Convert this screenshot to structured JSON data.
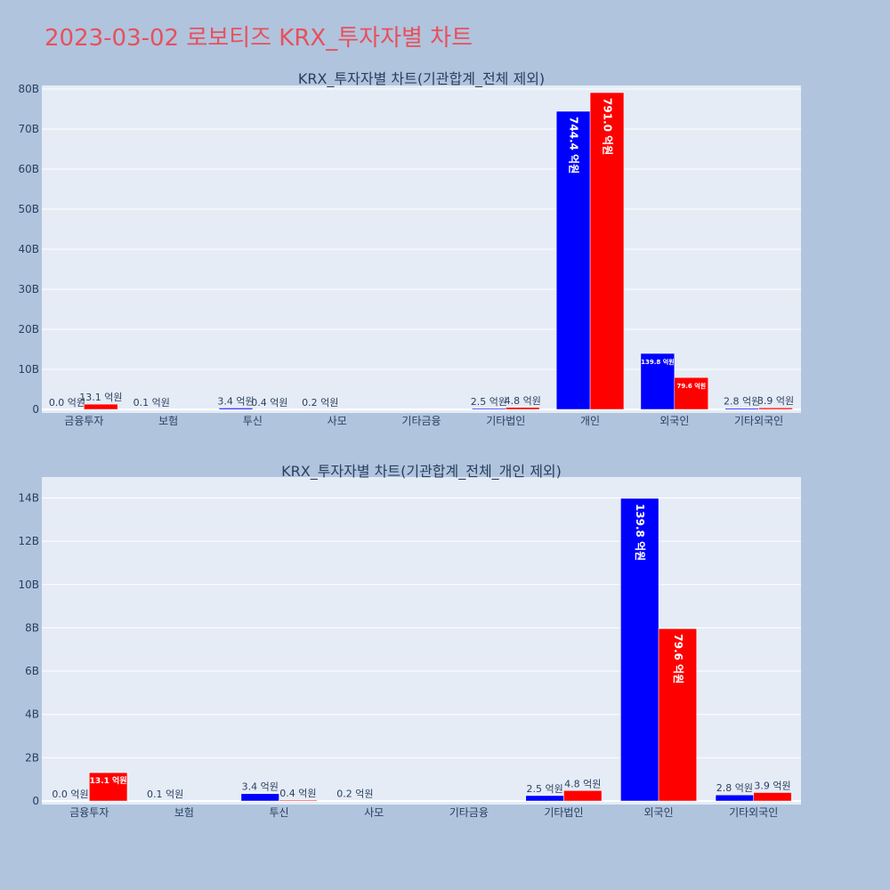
{
  "title": "2023-03-02 로보티즈 KRX_투자자별 차트",
  "colors": {
    "bg": "#b0c4de",
    "plot_bg": "#e5ecf6",
    "series_a": "#0000ff",
    "series_b": "#ff0000",
    "title": "#e8505b"
  },
  "chart_data": [
    {
      "type": "bar",
      "title": "KRX_투자자별 차트(기관합계_전체 제외)",
      "categories": [
        "금융투자",
        "보험",
        "투신",
        "사모",
        "기타금융",
        "기타법인",
        "개인",
        "외국인",
        "기타외국인"
      ],
      "ylim": [
        0,
        80
      ],
      "yticks": [
        0,
        10,
        20,
        30,
        40,
        50,
        60,
        70,
        80
      ],
      "ytick_labels": [
        "0",
        "10B",
        "20B",
        "30B",
        "40B",
        "50B",
        "60B",
        "70B",
        "80B"
      ],
      "series": [
        {
          "name": "blue",
          "values": [
            0.0,
            0.01,
            0.34,
            0.02,
            0,
            0.25,
            74.44,
            13.98,
            0.28
          ],
          "labels": [
            "0.0 억원",
            "0.1 억원",
            "3.4 억원",
            "0.2 억원",
            "",
            "2.5 억원",
            "744.4 억원",
            "139.8 억원",
            "2.8 억원"
          ]
        },
        {
          "name": "red",
          "values": [
            1.31,
            0,
            0.04,
            0,
            0,
            0.48,
            79.1,
            7.96,
            0.39
          ],
          "labels": [
            "13.1 억원",
            "",
            "0.4 억원",
            "",
            "",
            "4.8 억원",
            "791.0 억원",
            "79.6 억원",
            "3.9 억원"
          ]
        }
      ]
    },
    {
      "type": "bar",
      "title": "KRX_투자자별 차트(기관합계_전체_개인 제외)",
      "categories": [
        "금융투자",
        "보험",
        "투신",
        "사모",
        "기타금융",
        "기타법인",
        "외국인",
        "기타외국인"
      ],
      "ylim": [
        0,
        14.8
      ],
      "yticks": [
        0,
        2,
        4,
        6,
        8,
        10,
        12,
        14
      ],
      "ytick_labels": [
        "0",
        "2B",
        "4B",
        "6B",
        "8B",
        "10B",
        "12B",
        "14B"
      ],
      "series": [
        {
          "name": "blue",
          "values": [
            0.0,
            0.01,
            0.34,
            0.02,
            0,
            0.25,
            13.98,
            0.28
          ],
          "labels": [
            "0.0 억원",
            "0.1 억원",
            "3.4 억원",
            "0.2 억원",
            "",
            "2.5 억원",
            "139.8 억원",
            "2.8 억원"
          ]
        },
        {
          "name": "red",
          "values": [
            1.31,
            0,
            0.04,
            0,
            0,
            0.48,
            7.96,
            0.39
          ],
          "labels": [
            "13.1 억원",
            "",
            "0.4 억원",
            "",
            "",
            "4.8 억원",
            "79.6 억원",
            "3.9 억원"
          ]
        }
      ]
    }
  ]
}
